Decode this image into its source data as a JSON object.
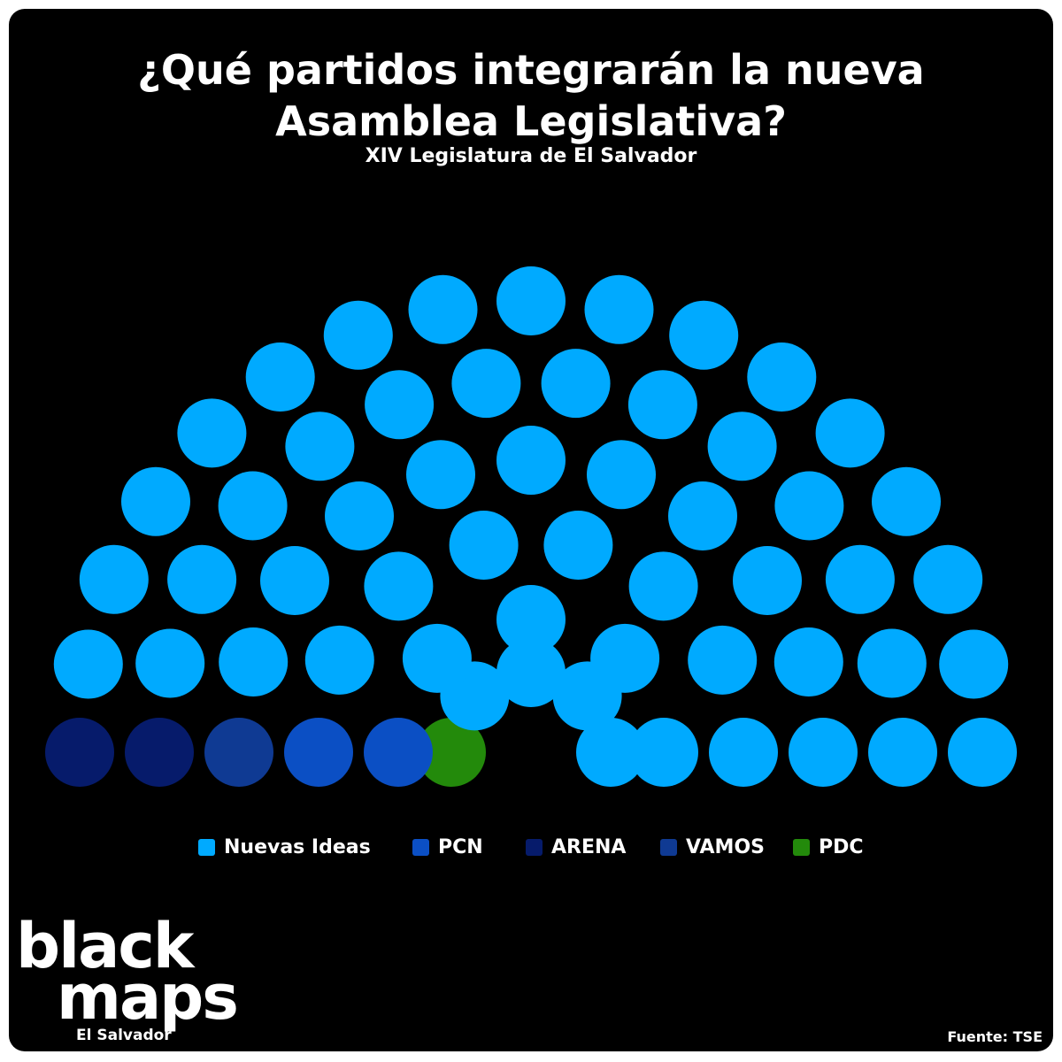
{
  "header": {
    "title_line1": "¿Qué partidos integrarán la nueva",
    "title_line2": "Asamblea Legislativa?",
    "subtitle": "XIV Legislatura de El Salvador"
  },
  "chart_data": {
    "type": "parliament",
    "total_seats": 60,
    "series": [
      {
        "name": "Nuevas Ideas",
        "seats": 54,
        "color": "#00aaff"
      },
      {
        "name": "PCN",
        "seats": 2,
        "color": "#0b4fc4"
      },
      {
        "name": "ARENA",
        "seats": 2,
        "color": "#061b6b"
      },
      {
        "name": "VAMOS",
        "seats": 1,
        "color": "#0f3a93"
      },
      {
        "name": "PDC",
        "seats": 1,
        "color": "#238a0b"
      }
    ],
    "legend_position": "bottom"
  },
  "footer": {
    "logo_line1": "black",
    "logo_line2": "maps",
    "region": "El Salvador",
    "source": "Fuente: TSE"
  }
}
